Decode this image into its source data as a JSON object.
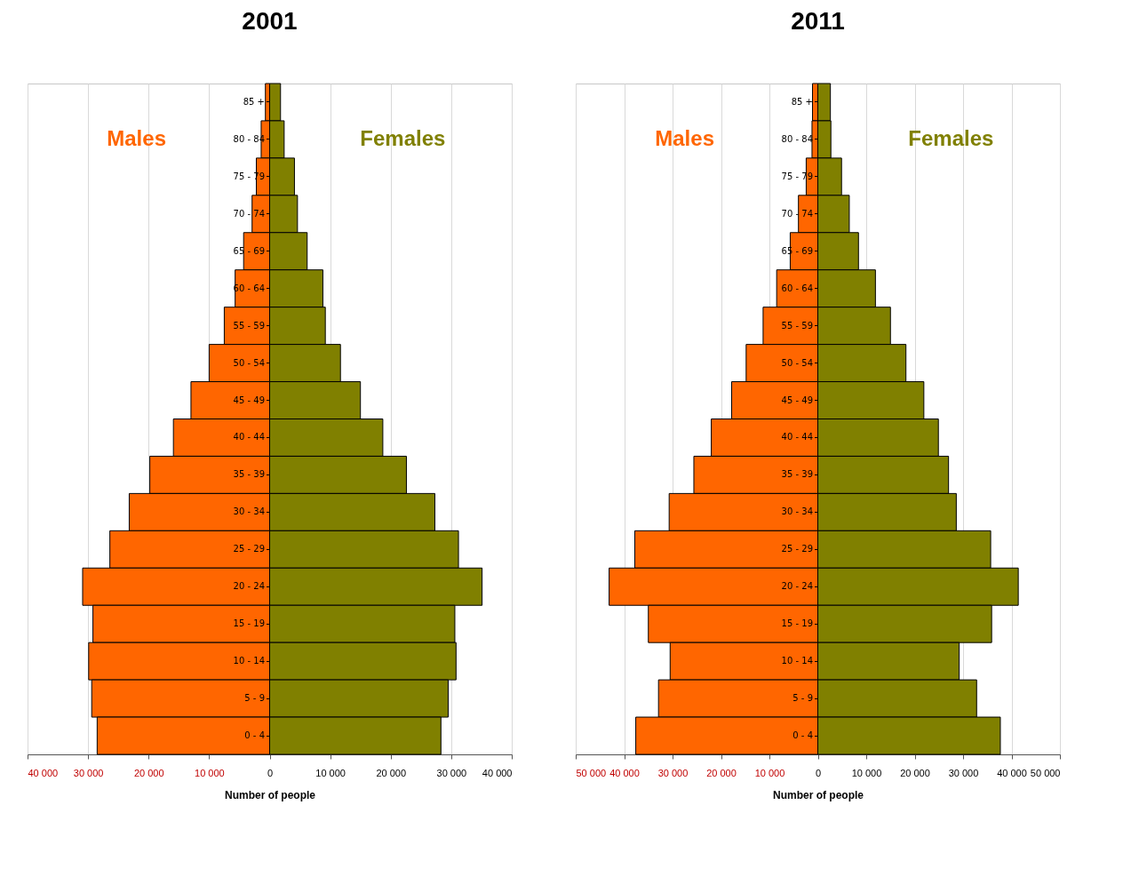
{
  "chart_data": [
    {
      "type": "bar",
      "orientation": "horizontal",
      "stacked": true,
      "title": "2001",
      "xlabel": "Number of people",
      "grid": "x",
      "categories": [
        "85 +",
        "80 - 84",
        "75 - 79",
        "70 - 74",
        "65 - 69",
        "60 - 64",
        "55 - 59",
        "50 - 54",
        "45 - 49",
        "40 - 44",
        "35 - 39",
        "30 - 34",
        "25 - 29",
        "20 - 24",
        "15 - 19",
        "10 - 14",
        "5 - 9",
        "0 - 4"
      ],
      "series": [
        {
          "name": "Males",
          "color": "#ff6600",
          "values": [
            -700,
            -1400,
            -2200,
            -2900,
            -4300,
            -5700,
            -7500,
            -10000,
            -13000,
            -15900,
            -19800,
            -23200,
            -26400,
            -30900,
            -29200,
            -29900,
            -29400,
            -28500
          ]
        },
        {
          "name": "Females",
          "color": "#808000",
          "values": [
            1800,
            2400,
            4100,
            4600,
            6200,
            8800,
            9200,
            11700,
            15000,
            18700,
            22600,
            27300,
            31200,
            35100,
            30600,
            30800,
            29500,
            28300
          ]
        }
      ],
      "xlim": [
        -40000,
        40000
      ],
      "xticks": [
        {
          "value": -40000,
          "label": "40 000"
        },
        {
          "value": -30000,
          "label": "30 000"
        },
        {
          "value": -20000,
          "label": "20 000"
        },
        {
          "value": -10000,
          "label": "10 000"
        },
        0,
        {
          "value": 10000,
          "label": "10 000"
        },
        {
          "value": 20000,
          "label": "20 000"
        },
        {
          "value": 30000,
          "label": "30 000"
        },
        {
          "value": 40000,
          "label": "40 000"
        }
      ]
    },
    {
      "type": "bar",
      "orientation": "horizontal",
      "stacked": true,
      "title": "2011",
      "xlabel": "Number of people",
      "grid": "x",
      "categories": [
        "85 +",
        "80 - 84",
        "75 - 79",
        "70 - 74",
        "65 - 69",
        "60 - 64",
        "55 - 59",
        "50 - 54",
        "45 - 49",
        "40 - 44",
        "35 - 39",
        "30 - 34",
        "25 - 29",
        "20 - 24",
        "15 - 19",
        "10 - 14",
        "5 - 9",
        "0 - 4"
      ],
      "series": [
        {
          "name": "Males",
          "color": "#ff6600",
          "values": [
            -1100,
            -1200,
            -2400,
            -4000,
            -5700,
            -8500,
            -11300,
            -14800,
            -17800,
            -22000,
            -25600,
            -30700,
            -37800,
            -43100,
            -35000,
            -30500,
            -32900,
            -37600
          ]
        },
        {
          "name": "Females",
          "color": "#808000",
          "values": [
            2600,
            2700,
            4900,
            6500,
            8400,
            11900,
            15000,
            18200,
            21900,
            24900,
            27000,
            28600,
            35700,
            41400,
            35900,
            29200,
            32800,
            37700
          ]
        }
      ],
      "xlim": [
        -50000,
        50000
      ],
      "xticks": [
        {
          "value": -50000,
          "label": "50 000"
        },
        {
          "value": -40000,
          "label": "40 000"
        },
        {
          "value": -30000,
          "label": "30 000"
        },
        {
          "value": -20000,
          "label": "20 000"
        },
        {
          "value": -10000,
          "label": "10 000"
        },
        0,
        {
          "value": 10000,
          "label": "10 000"
        },
        {
          "value": 20000,
          "label": "20 000"
        },
        {
          "value": 30000,
          "label": "30 000"
        },
        {
          "value": 40000,
          "label": "40 000"
        },
        {
          "value": 50000,
          "label": "50 000"
        }
      ]
    }
  ]
}
